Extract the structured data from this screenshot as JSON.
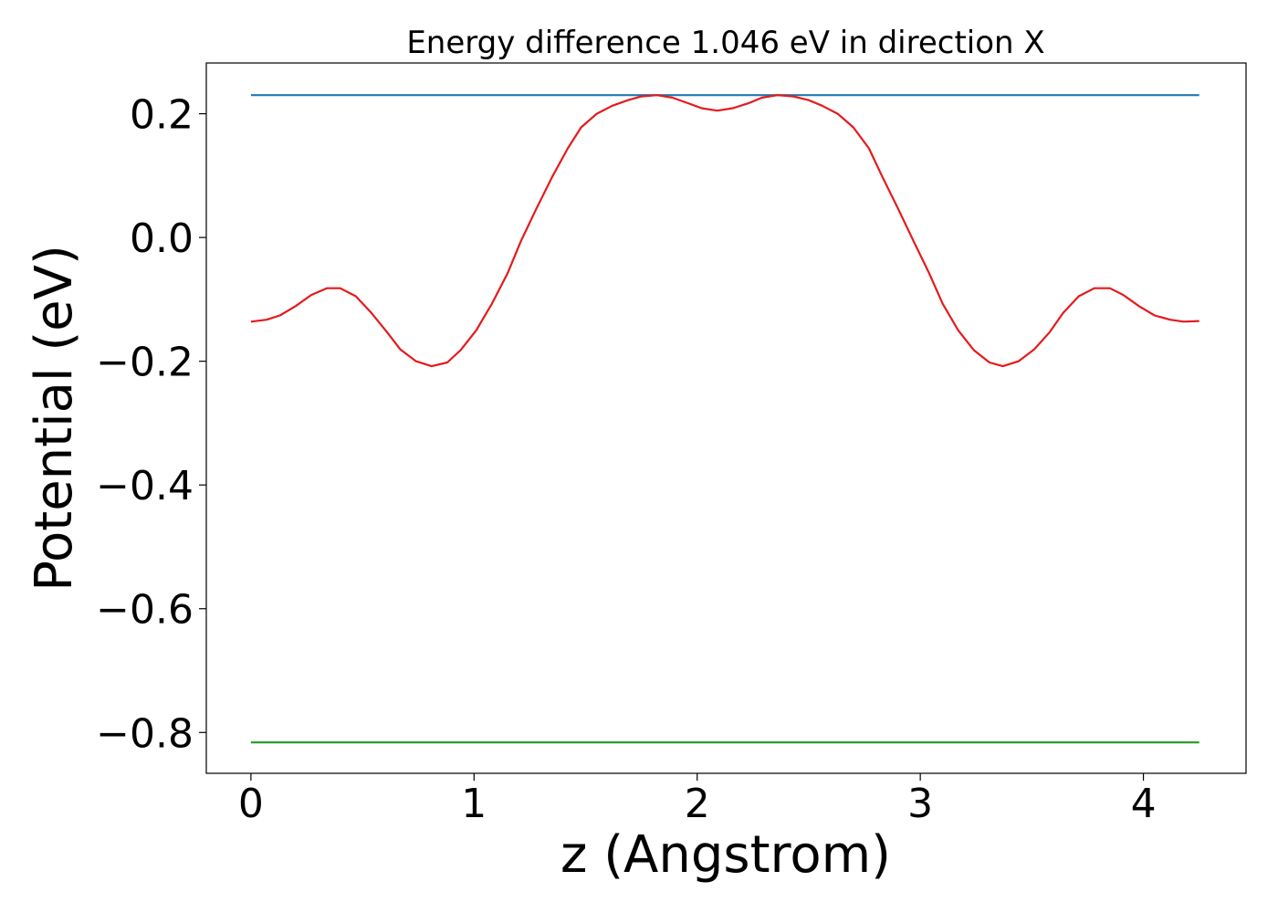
{
  "chart_data": {
    "type": "line",
    "title": "Energy difference 1.046 eV in direction X",
    "xlabel": "z (Angstrom)",
    "ylabel": "Potential (eV)",
    "xlim": [
      -0.2,
      4.46
    ],
    "ylim": [
      -0.866,
      0.282
    ],
    "xticks": [
      0,
      1,
      2,
      3,
      4
    ],
    "xtick_labels": [
      "0",
      "1",
      "2",
      "3",
      "4"
    ],
    "yticks": [
      0.2,
      0.0,
      -0.2,
      -0.4,
      -0.6,
      -0.8
    ],
    "ytick_labels": [
      "0.2",
      "0.0",
      "−0.2",
      "−0.4",
      "−0.6",
      "−0.8"
    ],
    "grid": false,
    "series": [
      {
        "color": "#1f77b4",
        "x": [
          0,
          4.25
        ],
        "y": [
          0.23,
          0.23
        ]
      },
      {
        "color": "#2ca02c",
        "x": [
          0,
          4.25
        ],
        "y": [
          -0.816,
          -0.816
        ]
      },
      {
        "color": "#e41a1c",
        "x": [
          0,
          0.07,
          0.13,
          0.2,
          0.27,
          0.34,
          0.4,
          0.47,
          0.54,
          0.61,
          0.67,
          0.74,
          0.81,
          0.88,
          0.94,
          1.01,
          1.08,
          1.15,
          1.21,
          1.28,
          1.35,
          1.42,
          1.48,
          1.55,
          1.62,
          1.69,
          1.75,
          1.82,
          1.89,
          1.96,
          2.02,
          2.09,
          2.16,
          2.23,
          2.29,
          2.36,
          2.43,
          2.5,
          2.56,
          2.63,
          2.7,
          2.77,
          2.83,
          2.9,
          2.97,
          3.04,
          3.1,
          3.17,
          3.24,
          3.31,
          3.37,
          3.44,
          3.51,
          3.58,
          3.64,
          3.71,
          3.78,
          3.85,
          3.91,
          3.98,
          4.05,
          4.12,
          4.18,
          4.25
        ],
        "y": [
          -0.136,
          -0.133,
          -0.126,
          -0.111,
          -0.093,
          -0.082,
          -0.082,
          -0.095,
          -0.122,
          -0.153,
          -0.181,
          -0.2,
          -0.208,
          -0.202,
          -0.182,
          -0.15,
          -0.107,
          -0.058,
          -0.006,
          0.047,
          0.098,
          0.144,
          0.178,
          0.2,
          0.213,
          0.222,
          0.228,
          0.23,
          0.226,
          0.217,
          0.209,
          0.205,
          0.209,
          0.217,
          0.226,
          0.23,
          0.228,
          0.222,
          0.213,
          0.2,
          0.178,
          0.144,
          0.098,
          0.047,
          -0.006,
          -0.058,
          -0.107,
          -0.15,
          -0.182,
          -0.202,
          -0.208,
          -0.2,
          -0.181,
          -0.153,
          -0.122,
          -0.095,
          -0.082,
          -0.082,
          -0.093,
          -0.111,
          -0.126,
          -0.133,
          -0.136,
          -0.135
        ]
      }
    ]
  }
}
